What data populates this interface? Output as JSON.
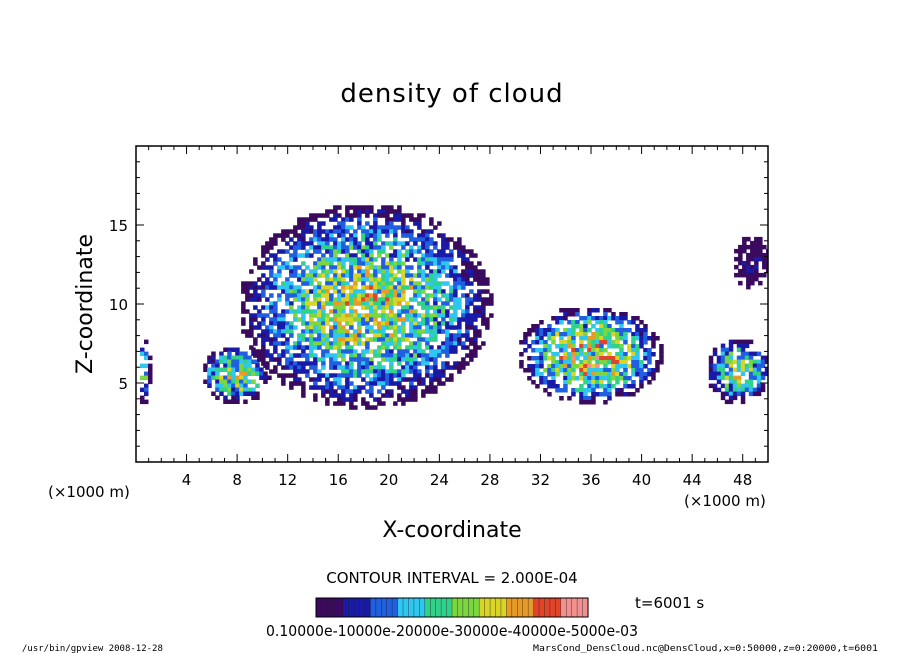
{
  "chart_data": {
    "type": "heatmap",
    "title": "density of cloud",
    "xlabel": "X-coordinate",
    "ylabel": "Z-coordinate",
    "x_unit": "(×1000 m)",
    "y_unit": "(×1000 m)",
    "xlim": [
      0,
      50
    ],
    "ylim": [
      0,
      20
    ],
    "xticks": [
      4,
      8,
      12,
      16,
      20,
      24,
      28,
      32,
      36,
      40,
      44,
      48
    ],
    "yticks": [
      5,
      10,
      15
    ],
    "contour_interval_text": "CONTOUR INTERVAL = 2.000E-04",
    "time_text": "t=6001 s",
    "colorbar_tick_text": "0.10000e-10000e-20000e-30000e-40000e-5000e-03",
    "colorbar_range": [
      0,
      0.0005
    ],
    "colorbar_colors": [
      "#3a0a5e",
      "#1a1aa8",
      "#1f5fe0",
      "#2fc6f0",
      "#30d28a",
      "#7bd640",
      "#d8d428",
      "#e89a26",
      "#e0442a",
      "#f29090"
    ],
    "cloud_regions": [
      {
        "x_range": [
          0,
          1
        ],
        "z_range": [
          3.8,
          8
        ],
        "peak": 0.00025
      },
      {
        "x_range": [
          5,
          10.5
        ],
        "z_range": [
          3.8,
          7.5
        ],
        "peak": 0.0003
      },
      {
        "x_range": [
          8,
          28
        ],
        "z_range": [
          3.5,
          16.5
        ],
        "peak": 0.0003
      },
      {
        "x_range": [
          30,
          41.5
        ],
        "z_range": [
          3.8,
          10
        ],
        "peak": 0.00035
      },
      {
        "x_range": [
          45,
          50
        ],
        "z_range": [
          3.8,
          8
        ],
        "peak": 0.00028
      },
      {
        "x_range": [
          47,
          50
        ],
        "z_range": [
          11,
          14.5
        ],
        "peak": 5e-05
      }
    ]
  },
  "footer": {
    "left": "/usr/bin/gpview  2008-12-28",
    "right": "MarsCond_DensCloud.nc@DensCloud,x=0:50000,z=0:20000,t=6001"
  }
}
